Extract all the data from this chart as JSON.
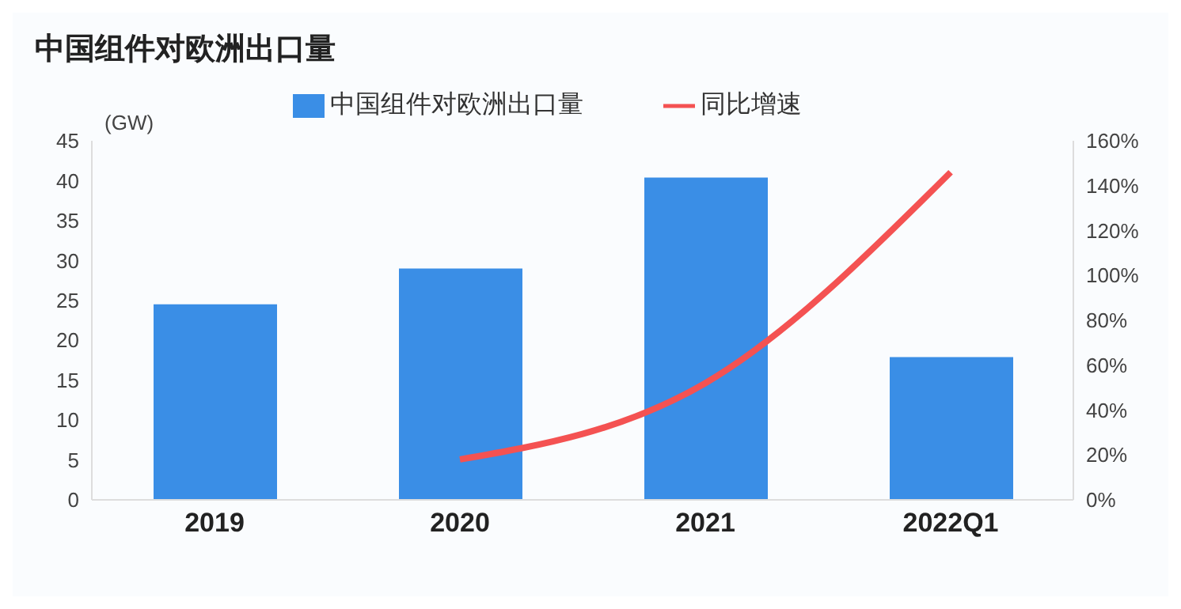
{
  "chart_data": {
    "type": "bar",
    "title": "中国组件对欧洲出口量",
    "ylabel": "(GW)",
    "categories": [
      "2019",
      "2020",
      "2021",
      "2022Q1"
    ],
    "series": [
      {
        "name": "中国组件对欧洲出口量",
        "color": "#3a8ee6",
        "values": [
          24.5,
          29.0,
          40.4,
          17.9
        ]
      },
      {
        "name": "同比增速",
        "type": "line",
        "axis": "y2",
        "color": "#f45252",
        "values": [
          null,
          18,
          52,
          146
        ]
      }
    ],
    "ylim": [
      0,
      45
    ],
    "yticks": [
      0,
      5,
      10,
      15,
      20,
      25,
      30,
      35,
      40,
      45
    ],
    "y2lim": [
      0,
      160
    ],
    "y2ticks": [
      {
        "value": 0,
        "label": "0%"
      },
      {
        "value": 20,
        "label": "20%"
      },
      {
        "value": 40,
        "label": "40%"
      },
      {
        "value": 60,
        "label": "60%"
      },
      {
        "value": 80,
        "label": "80%"
      },
      {
        "value": 100,
        "label": "100%"
      },
      {
        "value": 120,
        "label": "120%"
      },
      {
        "value": 140,
        "label": "140%"
      },
      {
        "value": 160,
        "label": "160%"
      }
    ],
    "grid": false,
    "legend": "top",
    "marker": "none",
    "line_style": "solid"
  }
}
